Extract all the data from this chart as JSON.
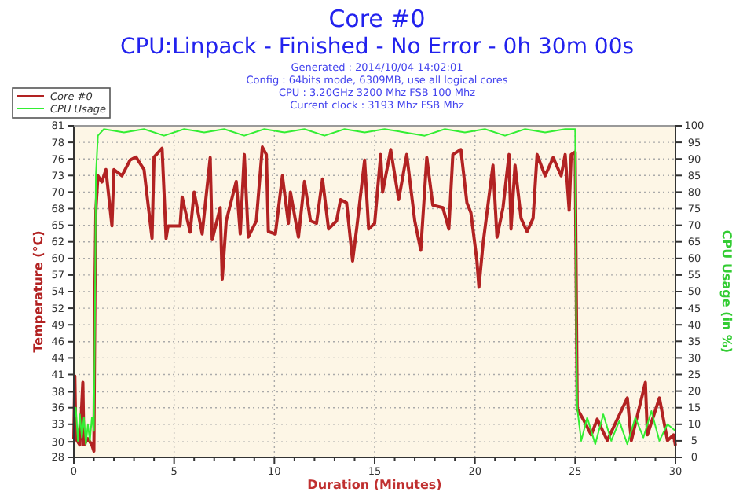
{
  "chart_data": {
    "type": "line",
    "title": "Core #0",
    "subtitle": "CPU:Linpack - Finished - No Error - 0h 30m 00s",
    "annotations": [
      "Generated : 2014/10/04 14:02:01",
      "Config : 64bits mode, 6309MB, use all logical cores",
      "CPU : 3.20GHz 3200 Mhz FSB 100 Mhz",
      "Current clock : 3193 Mhz FSB  Mhz"
    ],
    "xlabel": "Duration (Minutes)",
    "ylabel": "Temperature (°C)",
    "y2label": "CPU Usage (in %)",
    "xlim": [
      0,
      30
    ],
    "xticks": [
      0,
      {
        "value": 1,
        "label": null
      },
      {
        "value": 2,
        "label": null
      },
      {
        "value": 3,
        "label": null
      },
      {
        "value": 4,
        "label": null
      },
      5,
      {
        "value": 6,
        "label": null
      },
      {
        "value": 7,
        "label": null
      },
      {
        "value": 8,
        "label": null
      },
      {
        "value": 9,
        "label": null
      },
      10,
      {
        "value": 11,
        "label": null
      },
      {
        "value": 12,
        "label": null
      },
      {
        "value": 13,
        "label": null
      },
      {
        "value": 14,
        "label": null
      },
      15,
      {
        "value": 16,
        "label": null
      },
      {
        "value": 17,
        "label": null
      },
      {
        "value": 18,
        "label": null
      },
      {
        "value": 19,
        "label": null
      },
      20,
      {
        "value": 21,
        "label": null
      },
      {
        "value": 22,
        "label": null
      },
      {
        "value": 23,
        "label": null
      },
      {
        "value": 24,
        "label": null
      },
      25,
      {
        "value": 26,
        "label": null
      },
      {
        "value": 27,
        "label": null
      },
      {
        "value": 28,
        "label": null
      },
      {
        "value": 29,
        "label": null
      },
      30
    ],
    "ylim": [
      28,
      81
    ],
    "yticks": [
      28,
      {
        "value": 30.49,
        "label": "30"
      },
      {
        "value": 33.3,
        "label": "33"
      },
      {
        "value": 35.95,
        "label": "36"
      },
      {
        "value": 38.49,
        "label": "38"
      },
      {
        "value": 41.25,
        "label": "41"
      },
      {
        "value": 43.9,
        "label": "44"
      },
      {
        "value": 46.49,
        "label": "46"
      },
      {
        "value": 49.2,
        "label": "49"
      },
      {
        "value": 51.85,
        "label": "52"
      },
      {
        "value": 54.5,
        "label": "54"
      },
      {
        "value": 57.15,
        "label": "57"
      },
      {
        "value": 59.8,
        "label": "60"
      },
      {
        "value": 62.45,
        "label": "62"
      },
      {
        "value": 65.1,
        "label": "65"
      },
      {
        "value": 67.75,
        "label": "68"
      },
      {
        "value": 70.4,
        "label": "70"
      },
      {
        "value": 73.05,
        "label": "73"
      },
      {
        "value": 75.7,
        "label": "76"
      },
      {
        "value": 78.35,
        "label": "78"
      },
      81
    ],
    "y2lim": [
      0,
      100
    ],
    "y2ticks": [
      0,
      5,
      10,
      15,
      20,
      25,
      30,
      35,
      40,
      45,
      50,
      55,
      60,
      65,
      70,
      75,
      80,
      85,
      90,
      95,
      100
    ],
    "grid": true,
    "legend": "top left",
    "line_style": "solid",
    "series": [
      {
        "name": "Core #0",
        "color": "#b22222",
        "x": [
          0,
          0.05,
          0.1,
          0.3,
          0.45,
          0.5,
          0.7,
          0.9,
          1.0,
          1.05,
          1.1,
          1.2,
          1.4,
          1.6,
          1.9,
          2.0,
          2.4,
          2.8,
          3.1,
          3.5,
          3.9,
          4.0,
          4.4,
          4.6,
          4.7,
          5.0,
          5.3,
          5.4,
          5.8,
          6.0,
          6.4,
          6.8,
          6.9,
          7.3,
          7.4,
          7.6,
          8.1,
          8.3,
          8.5,
          8.7,
          9.1,
          9.4,
          9.6,
          9.7,
          10.05,
          10.4,
          10.7,
          10.8,
          11.2,
          11.5,
          11.8,
          12.1,
          12.4,
          12.7,
          13.1,
          13.3,
          13.6,
          13.9,
          14.1,
          14.5,
          14.7,
          15.0,
          15.3,
          15.4,
          15.8,
          16.2,
          16.6,
          17.0,
          17.3,
          17.6,
          17.9,
          18.4,
          18.7,
          18.9,
          19.3,
          19.6,
          19.8,
          20.1,
          20.2,
          20.4,
          20.6,
          20.9,
          21.1,
          21.4,
          21.7,
          21.8,
          22.0,
          22.3,
          22.6,
          22.9,
          23.1,
          23.5,
          23.9,
          24.3,
          24.5,
          24.7,
          24.8,
          25.0,
          25.1,
          25.4,
          25.8,
          26.1,
          26.6,
          27.6,
          27.8,
          28.5,
          28.6,
          29.2,
          29.6,
          29.9,
          30
        ],
        "values": [
          31,
          41,
          31,
          30,
          40,
          30,
          31,
          30,
          29,
          54,
          67.5,
          73,
          72,
          74,
          65,
          74,
          73,
          75.5,
          76,
          74,
          63,
          76,
          77.4,
          63,
          65,
          65,
          65,
          69.6,
          64,
          70.4,
          63.7,
          75.9,
          62.8,
          67.9,
          56.5,
          65.8,
          72.1,
          63.7,
          76.4,
          63.2,
          65.8,
          77.6,
          76.4,
          64.1,
          63.7,
          73,
          65.4,
          70.4,
          63.2,
          72.1,
          65.8,
          65.4,
          72.5,
          64.5,
          65.8,
          69.2,
          68.7,
          59.4,
          64.5,
          75.5,
          64.5,
          65.4,
          76.4,
          70.4,
          77.2,
          69.2,
          76.4,
          65.8,
          61.1,
          75.9,
          68.3,
          67.9,
          64.5,
          76.4,
          77.2,
          68.7,
          67.1,
          59.4,
          55.2,
          62,
          67.1,
          74.7,
          63.2,
          67.9,
          76.4,
          64.5,
          74.7,
          66.2,
          64.1,
          66.2,
          76.4,
          73,
          75.9,
          73,
          76.4,
          67.5,
          76.4,
          76.8,
          35.8,
          34.1,
          31.6,
          34.1,
          30.7,
          37.5,
          30.7,
          40,
          31.6,
          37.5,
          30.7,
          31.6,
          29.9
        ]
      },
      {
        "name": "CPU Usage",
        "color": "#33ee33",
        "axis": "y2",
        "x": [
          0,
          0.1,
          0.2,
          0.3,
          0.4,
          0.5,
          0.6,
          0.7,
          0.8,
          0.9,
          1.0,
          1.05,
          1.1,
          1.2,
          1.5,
          2.5,
          3.5,
          4.5,
          5.5,
          6.5,
          7.5,
          8.5,
          9.5,
          10.5,
          11.5,
          12.5,
          13.5,
          14.5,
          15.5,
          16.5,
          17.5,
          18.5,
          19.5,
          20.5,
          21.5,
          22.5,
          23.5,
          24.5,
          25.0,
          25.05,
          25.1,
          25.3,
          25.6,
          26.0,
          26.4,
          26.8,
          27.2,
          27.6,
          28.0,
          28.4,
          28.8,
          29.2,
          29.6,
          30
        ],
        "values": [
          10,
          15,
          5,
          13,
          6,
          12,
          4,
          10,
          5,
          12,
          8,
          40,
          85,
          97,
          99,
          98,
          99,
          97,
          99,
          98,
          99,
          97,
          99,
          98,
          99,
          97,
          99,
          98,
          99,
          98,
          97,
          99,
          98,
          99,
          97,
          99,
          98,
          99,
          99,
          40,
          15,
          5,
          12,
          4,
          13,
          5,
          11,
          4,
          12,
          6,
          14,
          5,
          10,
          8
        ]
      }
    ]
  }
}
